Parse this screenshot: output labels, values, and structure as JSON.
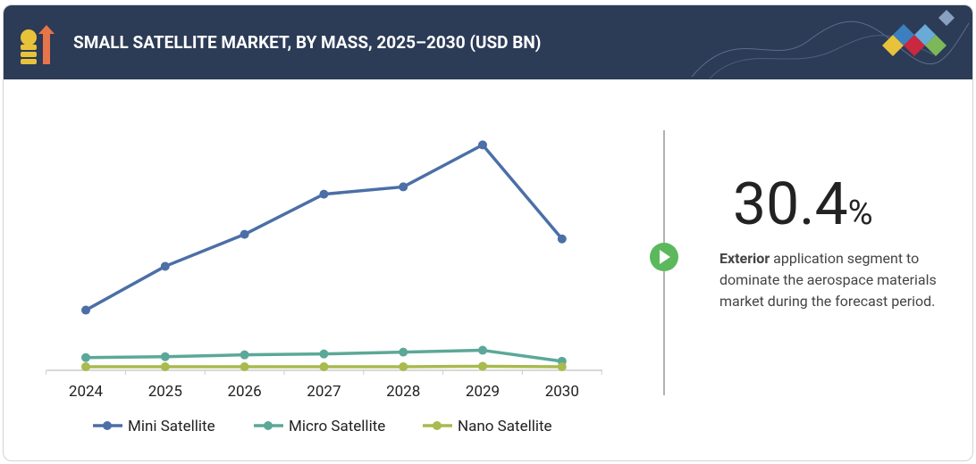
{
  "header": {
    "title": "SMALL SATELLITE MARKET, BY MASS, 2025–2030 (USD BN)"
  },
  "chart_data": {
    "type": "line",
    "categories": [
      "2024",
      "2025",
      "2026",
      "2027",
      "2028",
      "2029",
      "2030"
    ],
    "series": [
      {
        "name": "Mini Satellite",
        "color": "#4b6fa6",
        "values": [
          6.3,
          11.1,
          14.6,
          19.0,
          19.8,
          24.4,
          14.1
        ]
      },
      {
        "name": "Micro Satellite",
        "color": "#5ba898",
        "values": [
          1.1,
          1.2,
          1.4,
          1.5,
          1.7,
          1.9,
          0.7
        ]
      },
      {
        "name": "Nano Satellite",
        "color": "#a9ba4e",
        "values": [
          0.1,
          0.1,
          0.1,
          0.1,
          0.1,
          0.15,
          0.1
        ]
      }
    ],
    "ylim": [
      0,
      26
    ]
  },
  "callout": {
    "value": 30.4,
    "unit": "%",
    "highlight": "Exterior",
    "text": "application segment to dominate the aerospace materials market during the forecast period."
  }
}
